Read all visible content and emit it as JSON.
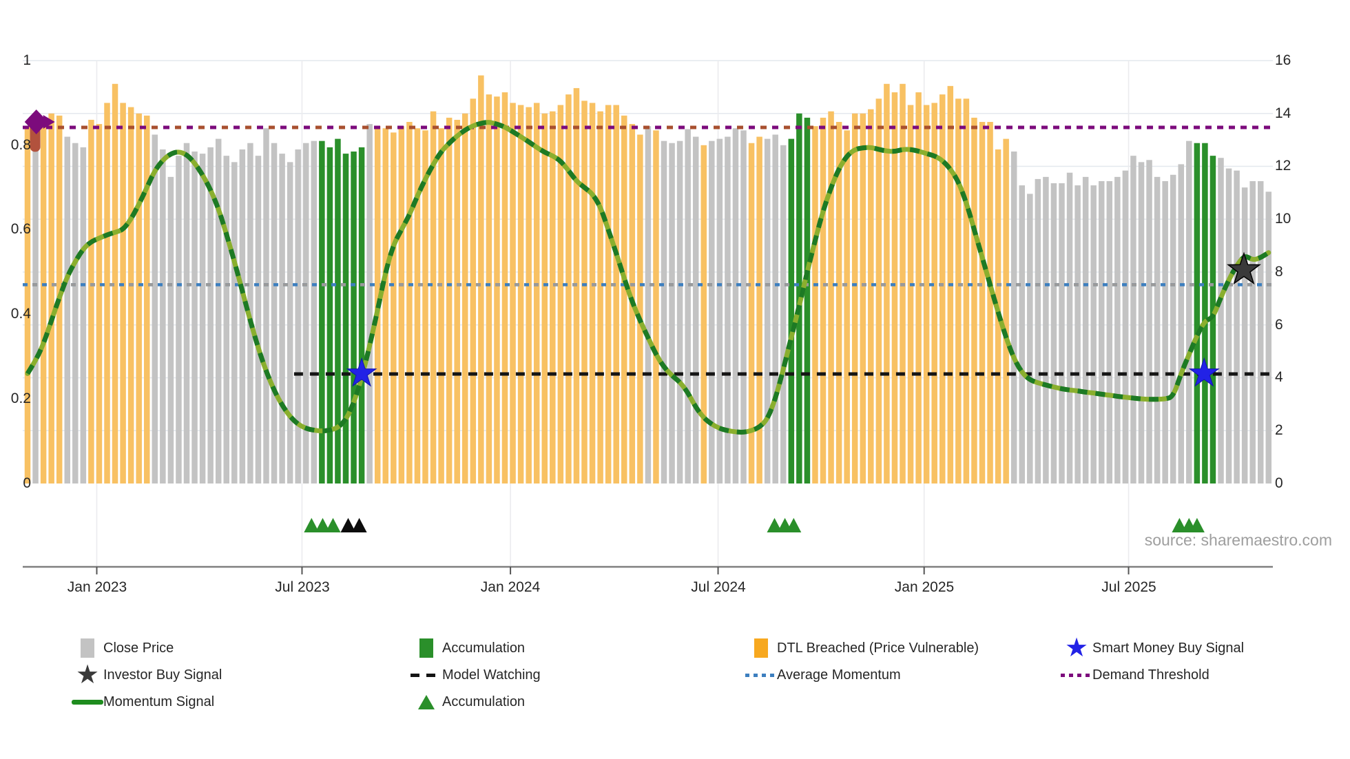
{
  "source_text": "source: sharemaestro.com",
  "colors": {
    "close": "#c3c3c3",
    "accumulation": "#2a8f2a",
    "dtl_bar": "#f8c163",
    "dtl_legend": "#f7a81f",
    "momentum": "#1e8c1e",
    "momentum_light": "#8aaf2e",
    "momentum_dark": "#1d7a24",
    "model": "#141414",
    "avg": "#3d7fbf",
    "avg_secondary": "#9a9a9a",
    "demand": "#7c0b7c",
    "demand_secondary": "#a8502f",
    "smart": "#2222e6",
    "investor": "#3a3a3a",
    "pin": "#b2523d",
    "triangle_black": "#0c0c0c",
    "axis_text": "#262626",
    "source_text": "#9e9e9e",
    "grid": "#e4e8ee",
    "axis_line": "#7f7f7f"
  },
  "chart_data": {
    "type": "bar+line",
    "title": "",
    "xlabel": "",
    "ylabel_left": "",
    "ylabel_right": "",
    "left_axis": {
      "range": [
        0,
        1
      ],
      "tick_values": [
        0,
        0.2,
        0.4,
        0.6,
        0.8,
        1
      ],
      "tick_labels": [
        "0",
        "0.2",
        "0.4",
        "0.6",
        "0.8",
        "1"
      ]
    },
    "right_axis": {
      "range": [
        0,
        16
      ],
      "tick_values": [
        0,
        2,
        4,
        6,
        8,
        10,
        12,
        14,
        16
      ],
      "tick_labels": [
        "0",
        "2",
        "4",
        "6",
        "8",
        "10",
        "12",
        "14",
        "16"
      ]
    },
    "x_ticks": [
      {
        "label": "Jan 2023",
        "week": 8.7
      },
      {
        "label": "Jul 2023",
        "week": 34.5
      },
      {
        "label": "Jan 2024",
        "week": 60.7
      },
      {
        "label": "Jul 2024",
        "week": 86.8
      },
      {
        "label": "Jan 2025",
        "week": 112.7
      },
      {
        "label": "Jul 2025",
        "week": 138.4
      }
    ],
    "bars": {
      "note": "weekly bars; color codes g=Close Price (grey), o=DTL Breached (orange), a=Accumulation (green)",
      "color_codes": "ogooogggoooooooogggggggggggggggggggggaaaaaagoooooooooooooooooooooooooooooooooogogggggogggggoogggaaaooooooooooooooooooooooooogggggggggggggggggggggggaaaggggggggg",
      "values": [
        0.845,
        0.825,
        0.855,
        0.875,
        0.87,
        0.82,
        0.805,
        0.795,
        0.86,
        0.85,
        0.9,
        0.945,
        0.9,
        0.89,
        0.875,
        0.87,
        0.825,
        0.79,
        0.725,
        0.775,
        0.805,
        0.785,
        0.78,
        0.795,
        0.815,
        0.775,
        0.76,
        0.79,
        0.805,
        0.775,
        0.84,
        0.805,
        0.78,
        0.76,
        0.79,
        0.805,
        0.81,
        0.81,
        0.795,
        0.815,
        0.78,
        0.785,
        0.795,
        0.85,
        0.845,
        0.84,
        0.83,
        0.845,
        0.855,
        0.84,
        0.835,
        0.88,
        0.84,
        0.865,
        0.86,
        0.875,
        0.91,
        0.965,
        0.92,
        0.915,
        0.925,
        0.9,
        0.895,
        0.89,
        0.9,
        0.875,
        0.88,
        0.895,
        0.92,
        0.935,
        0.905,
        0.9,
        0.88,
        0.895,
        0.895,
        0.87,
        0.85,
        0.825,
        0.845,
        0.835,
        0.81,
        0.805,
        0.81,
        0.838,
        0.82,
        0.8,
        0.81,
        0.815,
        0.82,
        0.84,
        0.835,
        0.805,
        0.82,
        0.815,
        0.825,
        0.8,
        0.815,
        0.875,
        0.865,
        0.845,
        0.865,
        0.88,
        0.855,
        0.835,
        0.875,
        0.875,
        0.885,
        0.91,
        0.945,
        0.925,
        0.945,
        0.895,
        0.925,
        0.895,
        0.9,
        0.92,
        0.94,
        0.91,
        0.91,
        0.865,
        0.855,
        0.855,
        0.79,
        0.815,
        0.785,
        0.705,
        0.685,
        0.72,
        0.725,
        0.71,
        0.71,
        0.735,
        0.705,
        0.725,
        0.705,
        0.715,
        0.715,
        0.725,
        0.74,
        0.775,
        0.76,
        0.765,
        0.725,
        0.715,
        0.73,
        0.755,
        0.81,
        0.805,
        0.805,
        0.775,
        0.77,
        0.745,
        0.74,
        0.7,
        0.715,
        0.715,
        0.69
      ]
    },
    "momentum_line": [
      [
        0,
        0.26
      ],
      [
        1,
        0.29
      ],
      [
        2,
        0.33
      ],
      [
        3,
        0.385
      ],
      [
        4,
        0.44
      ],
      [
        5,
        0.49
      ],
      [
        6,
        0.525
      ],
      [
        7,
        0.555
      ],
      [
        8,
        0.572
      ],
      [
        9,
        0.58
      ],
      [
        10,
        0.588
      ],
      [
        11,
        0.594
      ],
      [
        12,
        0.6
      ],
      [
        13,
        0.625
      ],
      [
        14,
        0.66
      ],
      [
        15,
        0.7
      ],
      [
        16,
        0.74
      ],
      [
        17,
        0.765
      ],
      [
        18,
        0.78
      ],
      [
        19,
        0.785
      ],
      [
        20,
        0.778
      ],
      [
        21,
        0.758
      ],
      [
        22,
        0.73
      ],
      [
        23,
        0.695
      ],
      [
        24,
        0.65
      ],
      [
        25,
        0.59
      ],
      [
        26,
        0.525
      ],
      [
        27,
        0.455
      ],
      [
        28,
        0.385
      ],
      [
        29,
        0.32
      ],
      [
        30,
        0.265
      ],
      [
        31,
        0.22
      ],
      [
        32,
        0.185
      ],
      [
        33,
        0.158
      ],
      [
        34,
        0.14
      ],
      [
        35,
        0.13
      ],
      [
        36,
        0.126
      ],
      [
        37,
        0.124
      ],
      [
        38,
        0.126
      ],
      [
        39,
        0.132
      ],
      [
        40,
        0.15
      ],
      [
        41,
        0.19
      ],
      [
        42,
        0.25
      ],
      [
        43,
        0.325
      ],
      [
        44,
        0.41
      ],
      [
        45,
        0.5
      ],
      [
        46,
        0.565
      ],
      [
        47,
        0.6
      ],
      [
        48,
        0.635
      ],
      [
        49,
        0.68
      ],
      [
        50,
        0.72
      ],
      [
        51,
        0.755
      ],
      [
        52,
        0.785
      ],
      [
        53,
        0.805
      ],
      [
        54,
        0.822
      ],
      [
        55,
        0.836
      ],
      [
        56,
        0.846
      ],
      [
        57,
        0.852
      ],
      [
        58,
        0.855
      ],
      [
        59,
        0.85
      ],
      [
        60,
        0.843
      ],
      [
        61,
        0.832
      ],
      [
        62,
        0.82
      ],
      [
        63,
        0.808
      ],
      [
        64,
        0.795
      ],
      [
        65,
        0.783
      ],
      [
        66,
        0.775
      ],
      [
        67,
        0.763
      ],
      [
        68,
        0.74
      ],
      [
        69,
        0.715
      ],
      [
        70,
        0.7
      ],
      [
        71,
        0.685
      ],
      [
        72,
        0.655
      ],
      [
        73,
        0.6
      ],
      [
        74,
        0.545
      ],
      [
        75,
        0.485
      ],
      [
        76,
        0.43
      ],
      [
        77,
        0.385
      ],
      [
        78,
        0.345
      ],
      [
        79,
        0.305
      ],
      [
        80,
        0.275
      ],
      [
        81,
        0.255
      ],
      [
        82,
        0.24
      ],
      [
        83,
        0.215
      ],
      [
        84,
        0.18
      ],
      [
        85,
        0.155
      ],
      [
        86,
        0.14
      ],
      [
        87,
        0.13
      ],
      [
        88,
        0.125
      ],
      [
        89,
        0.122
      ],
      [
        90,
        0.121
      ],
      [
        91,
        0.125
      ],
      [
        92,
        0.133
      ],
      [
        93,
        0.152
      ],
      [
        94,
        0.2
      ],
      [
        95,
        0.27
      ],
      [
        96,
        0.345
      ],
      [
        97,
        0.42
      ],
      [
        98,
        0.5
      ],
      [
        99,
        0.575
      ],
      [
        100,
        0.645
      ],
      [
        101,
        0.7
      ],
      [
        102,
        0.745
      ],
      [
        103,
        0.775
      ],
      [
        104,
        0.79
      ],
      [
        105,
        0.794
      ],
      [
        106,
        0.795
      ],
      [
        107,
        0.79
      ],
      [
        108,
        0.786
      ],
      [
        109,
        0.785
      ],
      [
        110,
        0.79
      ],
      [
        111,
        0.79
      ],
      [
        112,
        0.786
      ],
      [
        113,
        0.78
      ],
      [
        114,
        0.775
      ],
      [
        115,
        0.764
      ],
      [
        116,
        0.744
      ],
      [
        117,
        0.714
      ],
      [
        118,
        0.665
      ],
      [
        119,
        0.6
      ],
      [
        120,
        0.535
      ],
      [
        121,
        0.47
      ],
      [
        122,
        0.405
      ],
      [
        123,
        0.345
      ],
      [
        124,
        0.295
      ],
      [
        125,
        0.262
      ],
      [
        126,
        0.245
      ],
      [
        127,
        0.238
      ],
      [
        128,
        0.233
      ],
      [
        129,
        0.228
      ],
      [
        130,
        0.224
      ],
      [
        131,
        0.221
      ],
      [
        132,
        0.219
      ],
      [
        133,
        0.216
      ],
      [
        134,
        0.214
      ],
      [
        135,
        0.211
      ],
      [
        136,
        0.209
      ],
      [
        137,
        0.206
      ],
      [
        138,
        0.204
      ],
      [
        139,
        0.202
      ],
      [
        140,
        0.2
      ],
      [
        141,
        0.199
      ],
      [
        142,
        0.199
      ],
      [
        143,
        0.2
      ],
      [
        144,
        0.205
      ],
      [
        145,
        0.26
      ],
      [
        146,
        0.305
      ],
      [
        147,
        0.35
      ],
      [
        148,
        0.385
      ],
      [
        149,
        0.392
      ],
      [
        150,
        0.44
      ],
      [
        151,
        0.482
      ],
      [
        152,
        0.516
      ],
      [
        153,
        0.54
      ],
      [
        154,
        0.528
      ],
      [
        155,
        0.534
      ],
      [
        156,
        0.546
      ]
    ],
    "hlines": [
      {
        "name": "Demand Threshold",
        "value": 0.842,
        "style": "dotted",
        "color_key": "demand",
        "secondary_color_key": "demand_secondary",
        "secondary_until_week": 121
      },
      {
        "name": "Average Momentum",
        "value": 0.47,
        "style": "dotted",
        "color_key": "avg",
        "secondary_color_key": "avg_secondary",
        "secondary_until_week": 156
      },
      {
        "name": "Model Watching",
        "value": 0.259,
        "style": "dashed",
        "color_key": "model",
        "start_week": 33.5
      }
    ],
    "markers": {
      "smart_money_stars": [
        {
          "week": 42,
          "value": 0.26
        },
        {
          "week": 147.9,
          "value": 0.26
        }
      ],
      "investor_star": {
        "week": 152.9,
        "value": 0.505
      },
      "demand_start_diamond": {
        "week": 1.1,
        "value": 0.855
      },
      "price_pin": {
        "week": 1.0,
        "value": 0.83
      }
    },
    "accumulation_triangle_weeks": {
      "green": [
        35.7,
        37.1,
        38.4,
        93.9,
        95.2,
        96.3,
        144.8,
        146.0,
        147.0
      ],
      "black": [
        40.3,
        41.7
      ]
    }
  },
  "legend": {
    "items": [
      {
        "label": "Close Price"
      },
      {
        "label": "Investor Buy Signal"
      },
      {
        "label": "Momentum Signal"
      },
      {
        "label": "Accumulation"
      },
      {
        "label": "Model Watching"
      },
      {
        "label": "Accumulation"
      },
      {
        "label": "DTL Breached (Price Vulnerable)"
      },
      {
        "label": "Average Momentum"
      },
      {
        "label": "Smart Money Buy Signal"
      },
      {
        "label": "Demand Threshold"
      }
    ]
  }
}
